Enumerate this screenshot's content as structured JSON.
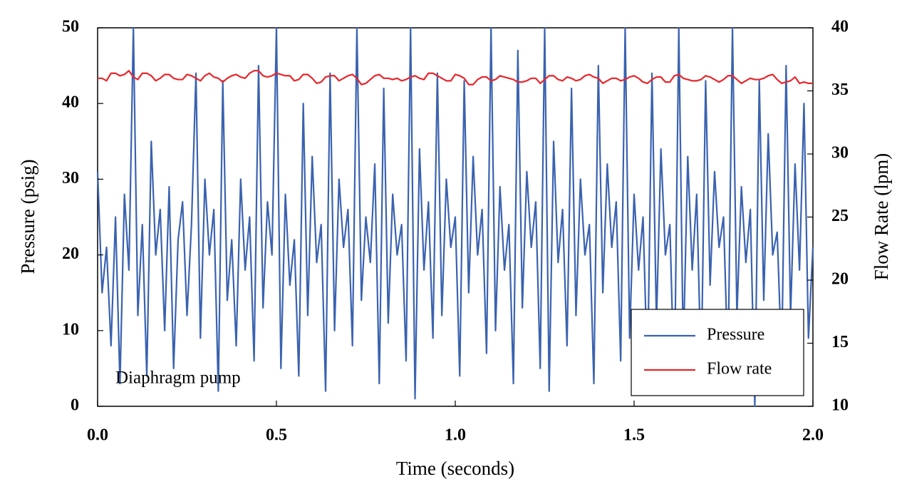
{
  "chart_data": {
    "type": "line",
    "x_label": "Time (seconds)",
    "y_label": "Pressure (psig)",
    "y2_label": "Flow Rate (lpm)",
    "annotation": "Diaphragm pump",
    "legend": "lower right",
    "grid": false,
    "xlim": [
      0,
      2
    ],
    "xticks": [
      {
        "value": 0,
        "label": "0.0"
      },
      {
        "value": 0.5,
        "label": "0.5"
      },
      {
        "value": 1,
        "label": "1.0"
      },
      {
        "value": 1.5,
        "label": "1.5"
      },
      {
        "value": 2,
        "label": "2.0"
      }
    ],
    "ylim": [
      0,
      50
    ],
    "yticks": [
      0,
      10,
      20,
      30,
      40,
      50
    ],
    "y2lim": [
      10,
      40
    ],
    "y2ticks": [
      10,
      15,
      20,
      25,
      30,
      35,
      40
    ],
    "x": [
      0,
      0.0125,
      0.025,
      0.0375,
      0.05,
      0.0625,
      0.075,
      0.0875,
      0.1,
      0.1125,
      0.125,
      0.1375,
      0.15,
      0.1625,
      0.175,
      0.1875,
      0.2,
      0.2125,
      0.225,
      0.2375,
      0.25,
      0.2625,
      0.275,
      0.2875,
      0.3,
      0.3125,
      0.325,
      0.3375,
      0.35,
      0.3625,
      0.375,
      0.3875,
      0.4,
      0.4125,
      0.425,
      0.4375,
      0.45,
      0.4625,
      0.475,
      0.4875,
      0.5,
      0.5125,
      0.525,
      0.5375,
      0.55,
      0.5625,
      0.575,
      0.5875,
      0.6,
      0.6125,
      0.625,
      0.6375,
      0.65,
      0.6625,
      0.675,
      0.6875,
      0.7,
      0.7125,
      0.725,
      0.7375,
      0.75,
      0.7625,
      0.775,
      0.7875,
      0.8,
      0.8125,
      0.825,
      0.8375,
      0.85,
      0.8625,
      0.875,
      0.8875,
      0.9,
      0.9125,
      0.925,
      0.9375,
      0.95,
      0.9625,
      0.975,
      0.9875,
      1,
      1.0125,
      1.025,
      1.0375,
      1.05,
      1.0625,
      1.075,
      1.0875,
      1.1,
      1.1125,
      1.125,
      1.1375,
      1.15,
      1.1625,
      1.175,
      1.1875,
      1.2,
      1.2125,
      1.225,
      1.2375,
      1.25,
      1.2625,
      1.275,
      1.2875,
      1.3,
      1.3125,
      1.325,
      1.3375,
      1.35,
      1.3625,
      1.375,
      1.3875,
      1.4,
      1.4125,
      1.425,
      1.4375,
      1.45,
      1.4625,
      1.475,
      1.4875,
      1.5,
      1.5125,
      1.525,
      1.5375,
      1.55,
      1.5625,
      1.575,
      1.5875,
      1.6,
      1.6125,
      1.625,
      1.6375,
      1.65,
      1.6625,
      1.675,
      1.6875,
      1.7,
      1.7125,
      1.725,
      1.7375,
      1.75,
      1.7625,
      1.775,
      1.7875,
      1.8,
      1.8125,
      1.825,
      1.8375,
      1.85,
      1.8625,
      1.875,
      1.8875,
      1.9,
      1.9125,
      1.925,
      1.9375,
      1.95,
      1.9625,
      1.975,
      1.9875,
      2
    ],
    "series": [
      {
        "name": "Pressure",
        "color": "#3a62b0",
        "values": [
          31,
          15,
          21,
          8,
          25,
          3,
          28,
          18,
          50,
          12,
          24,
          4,
          35,
          20,
          26,
          10,
          29,
          5,
          22,
          27,
          12,
          24,
          44,
          9,
          30,
          20,
          26,
          2,
          43,
          14,
          22,
          8,
          30,
          18,
          25,
          6,
          45,
          13,
          27,
          20,
          50,
          5,
          28,
          16,
          22,
          4,
          40,
          12,
          33,
          19,
          24,
          2,
          44,
          10,
          30,
          21,
          26,
          8,
          50,
          14,
          25,
          19,
          32,
          3,
          42,
          11,
          28,
          20,
          24,
          6,
          50,
          1,
          34,
          18,
          27,
          9,
          44,
          12,
          30,
          21,
          25,
          4,
          43,
          15,
          33,
          20,
          26,
          7,
          50,
          10,
          29,
          18,
          24,
          3,
          47,
          13,
          31,
          21,
          27,
          5,
          50,
          2,
          35,
          19,
          26,
          8,
          42,
          12,
          30,
          20,
          24,
          3,
          45,
          15,
          32,
          21,
          27,
          6,
          50,
          9,
          28,
          18,
          25,
          4,
          44,
          11,
          34,
          20,
          24,
          2,
          50,
          7,
          33,
          18,
          28,
          4,
          43,
          16,
          31,
          21,
          25,
          5,
          50,
          12,
          29,
          19,
          26,
          0,
          43,
          14,
          36,
          20,
          23,
          6,
          45,
          12,
          32,
          18,
          40,
          9,
          21
        ]
      },
      {
        "name": "Flow rate",
        "color": "#e8262b",
        "axis": "y2",
        "values": [
          36,
          36,
          35.8,
          36.4,
          36.4,
          36.2,
          36.3,
          36.6,
          36.1,
          35.9,
          36.4,
          36.4,
          36.2,
          35.8,
          36,
          36.3,
          36.3,
          36,
          35.9,
          35.9,
          36.3,
          36.2,
          36,
          35.8,
          36.2,
          36.4,
          36.1,
          36,
          35.7,
          36,
          36.2,
          36.3,
          36.1,
          36,
          36.4,
          36.6,
          36.6,
          36.2,
          36.1,
          36.2,
          36.4,
          36.3,
          36.2,
          36.2,
          35.8,
          35.9,
          36.3,
          36.3,
          36,
          35.6,
          35.7,
          36.1,
          36.2,
          36.2,
          35.8,
          36,
          36.2,
          36.3,
          36,
          35.5,
          35.6,
          35.9,
          36.2,
          36.3,
          36,
          36,
          35.9,
          36,
          35.8,
          35.9,
          36.1,
          36.2,
          36,
          35.9,
          36.4,
          36.4,
          36.2,
          36,
          35.8,
          35.8,
          36.3,
          36.2,
          36,
          35.5,
          35.5,
          35.9,
          36.1,
          36.1,
          35.8,
          35.9,
          36.2,
          36.1,
          36,
          35.9,
          35.7,
          35.7,
          35.8,
          36,
          36,
          35.6,
          35.9,
          36.2,
          36.2,
          35.9,
          35.8,
          36.1,
          36,
          35.8,
          35.9,
          36.2,
          36.3,
          36.1,
          36,
          35.6,
          35.8,
          36,
          36,
          35.8,
          35.9,
          36.1,
          36.2,
          36,
          35.7,
          35.6,
          35.9,
          36.1,
          36.1,
          35.7,
          35.7,
          36.2,
          36.3,
          36,
          35.9,
          35.8,
          35.8,
          35.9,
          36.2,
          36.1,
          35.9,
          35.7,
          35.9,
          36.2,
          36.2,
          35.9,
          35.6,
          35.8,
          36,
          35.9,
          35.9,
          36,
          36.2,
          36.3,
          35.9,
          35.6,
          35.7,
          35.8,
          36.1,
          35.6,
          35.7,
          35.6,
          35.6
        ]
      }
    ]
  }
}
